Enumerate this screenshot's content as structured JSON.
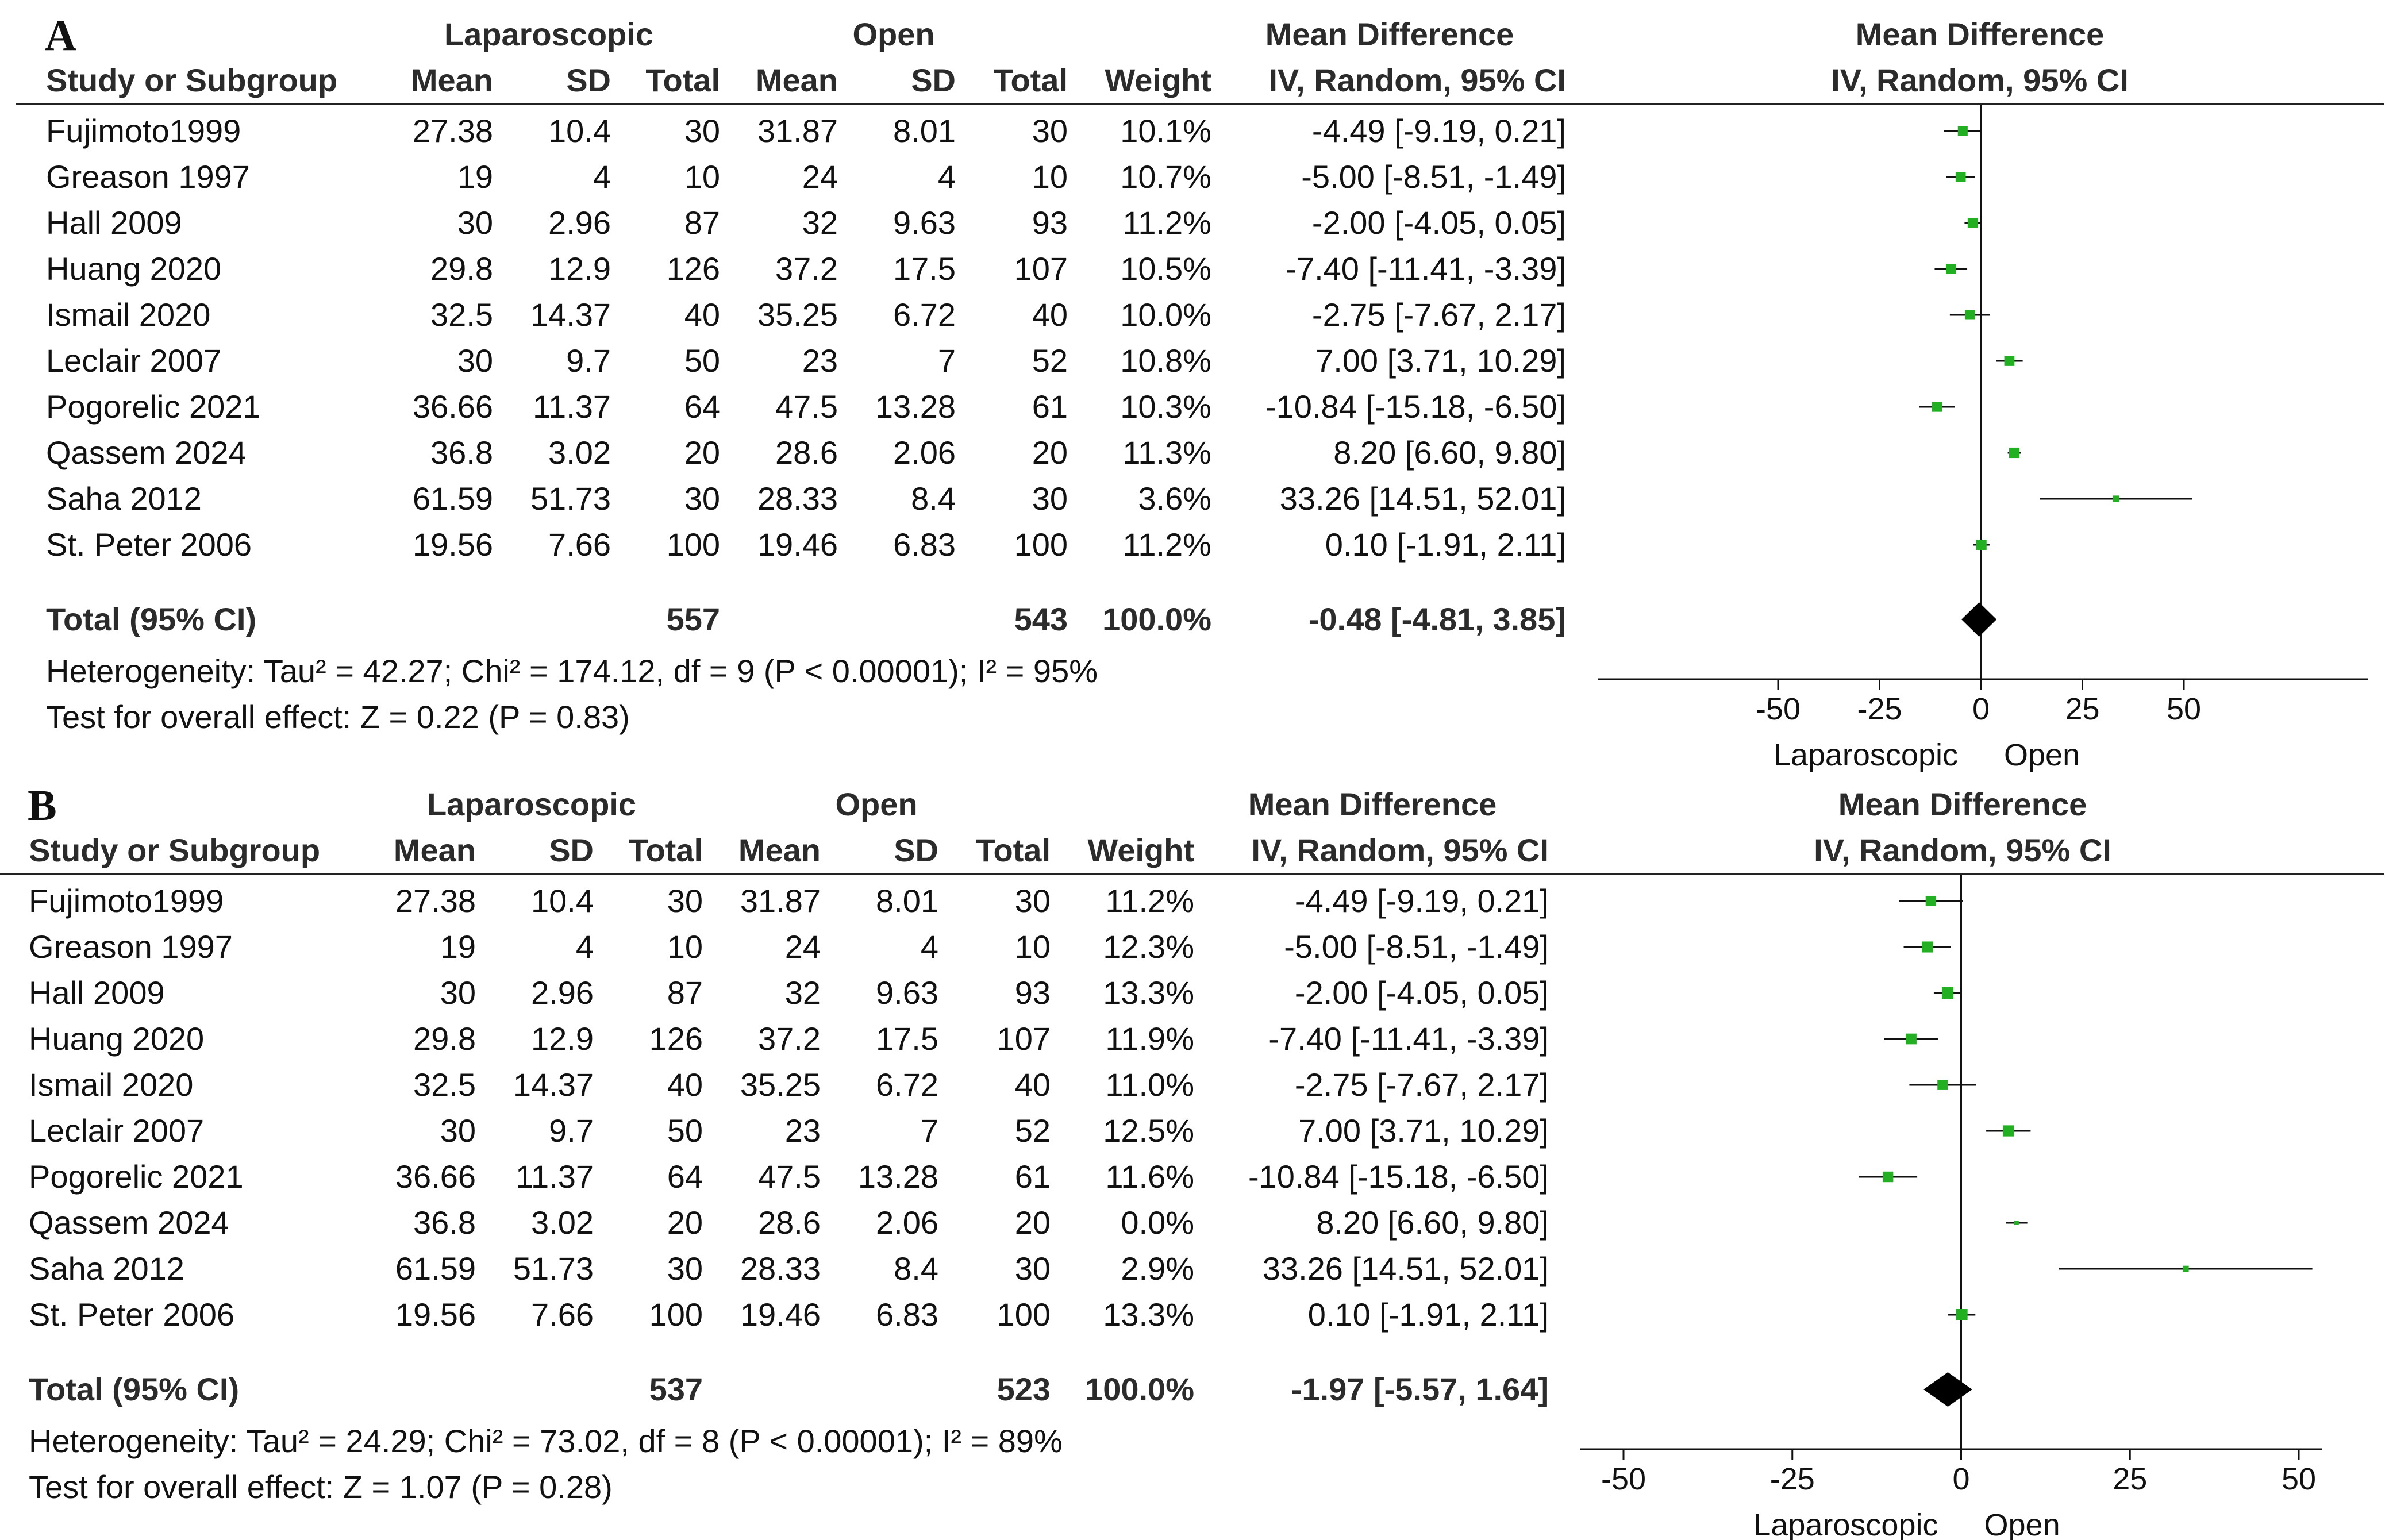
{
  "chart_data": [
    {
      "type": "forest",
      "panel_label": "A",
      "group_headers": {
        "experimental": "Laparoscopic",
        "control": "Open",
        "effect": "Mean Difference",
        "plot": "Mean Difference"
      },
      "columns": {
        "study": "Study or Subgroup",
        "mean": "Mean",
        "sd": "SD",
        "total": "Total",
        "weight": "Weight",
        "ci": "IV, Random, 95% CI",
        "plot_ci": "IV, Random, 95% CI"
      },
      "studies": [
        {
          "name": "Fujimoto1999",
          "exp_mean": "27.38",
          "exp_sd": "10.4",
          "exp_total": "30",
          "ctl_mean": "31.87",
          "ctl_sd": "8.01",
          "ctl_total": "30",
          "weight": "10.1%",
          "ci_text": "-4.49 [-9.19, 0.21]",
          "md": -4.49,
          "lo": -9.19,
          "hi": 0.21,
          "w": 10.1
        },
        {
          "name": "Greason 1997",
          "exp_mean": "19",
          "exp_sd": "4",
          "exp_total": "10",
          "ctl_mean": "24",
          "ctl_sd": "4",
          "ctl_total": "10",
          "weight": "10.7%",
          "ci_text": "-5.00 [-8.51, -1.49]",
          "md": -5.0,
          "lo": -8.51,
          "hi": -1.49,
          "w": 10.7
        },
        {
          "name": "Hall 2009",
          "exp_mean": "30",
          "exp_sd": "2.96",
          "exp_total": "87",
          "ctl_mean": "32",
          "ctl_sd": "9.63",
          "ctl_total": "93",
          "weight": "11.2%",
          "ci_text": "-2.00 [-4.05, 0.05]",
          "md": -2.0,
          "lo": -4.05,
          "hi": 0.05,
          "w": 11.2
        },
        {
          "name": "Huang 2020",
          "exp_mean": "29.8",
          "exp_sd": "12.9",
          "exp_total": "126",
          "ctl_mean": "37.2",
          "ctl_sd": "17.5",
          "ctl_total": "107",
          "weight": "10.5%",
          "ci_text": "-7.40 [-11.41, -3.39]",
          "md": -7.4,
          "lo": -11.41,
          "hi": -3.39,
          "w": 10.5
        },
        {
          "name": "Ismail 2020",
          "exp_mean": "32.5",
          "exp_sd": "14.37",
          "exp_total": "40",
          "ctl_mean": "35.25",
          "ctl_sd": "6.72",
          "ctl_total": "40",
          "weight": "10.0%",
          "ci_text": "-2.75 [-7.67, 2.17]",
          "md": -2.75,
          "lo": -7.67,
          "hi": 2.17,
          "w": 10.0
        },
        {
          "name": "Leclair 2007",
          "exp_mean": "30",
          "exp_sd": "9.7",
          "exp_total": "50",
          "ctl_mean": "23",
          "ctl_sd": "7",
          "ctl_total": "52",
          "weight": "10.8%",
          "ci_text": "7.00 [3.71, 10.29]",
          "md": 7.0,
          "lo": 3.71,
          "hi": 10.29,
          "w": 10.8
        },
        {
          "name": "Pogorelic 2021",
          "exp_mean": "36.66",
          "exp_sd": "11.37",
          "exp_total": "64",
          "ctl_mean": "47.5",
          "ctl_sd": "13.28",
          "ctl_total": "61",
          "weight": "10.3%",
          "ci_text": "-10.84 [-15.18, -6.50]",
          "md": -10.84,
          "lo": -15.18,
          "hi": -6.5,
          "w": 10.3
        },
        {
          "name": "Qassem 2024",
          "exp_mean": "36.8",
          "exp_sd": "3.02",
          "exp_total": "20",
          "ctl_mean": "28.6",
          "ctl_sd": "2.06",
          "ctl_total": "20",
          "weight": "11.3%",
          "ci_text": "8.20 [6.60, 9.80]",
          "md": 8.2,
          "lo": 6.6,
          "hi": 9.8,
          "w": 11.3
        },
        {
          "name": "Saha 2012",
          "exp_mean": "61.59",
          "exp_sd": "51.73",
          "exp_total": "30",
          "ctl_mean": "28.33",
          "ctl_sd": "8.4",
          "ctl_total": "30",
          "weight": "3.6%",
          "ci_text": "33.26 [14.51, 52.01]",
          "md": 33.26,
          "lo": 14.51,
          "hi": 52.01,
          "w": 3.6
        },
        {
          "name": "St. Peter 2006",
          "exp_mean": "19.56",
          "exp_sd": "7.66",
          "exp_total": "100",
          "ctl_mean": "19.46",
          "ctl_sd": "6.83",
          "ctl_total": "100",
          "weight": "11.2%",
          "ci_text": "0.10 [-1.91, 2.11]",
          "md": 0.1,
          "lo": -1.91,
          "hi": 2.11,
          "w": 11.2
        }
      ],
      "total": {
        "label": "Total (95% CI)",
        "exp_total": "557",
        "ctl_total": "543",
        "weight": "100.0%",
        "ci_text": "-0.48 [-4.81, 3.85]",
        "md": -0.48,
        "lo": -4.81,
        "hi": 3.85
      },
      "heterogeneity": "Heterogeneity: Tau² = 42.27; Chi² = 174.12, df = 9 (P < 0.00001); I² = 95%",
      "overall_effect": "Test for overall effect: Z = 0.22 (P = 0.83)",
      "xlim": [
        -50,
        50
      ],
      "xticks": [
        -50,
        -25,
        0,
        25,
        50
      ],
      "favours_left": "Laparoscopic",
      "favours_right": "Open",
      "marker_color": "#22b022"
    },
    {
      "type": "forest",
      "panel_label": "B",
      "group_headers": {
        "experimental": "Laparoscopic",
        "control": "Open",
        "effect": "Mean Difference",
        "plot": "Mean Difference"
      },
      "columns": {
        "study": "Study or Subgroup",
        "mean": "Mean",
        "sd": "SD",
        "total": "Total",
        "weight": "Weight",
        "ci": "IV, Random, 95% CI",
        "plot_ci": "IV, Random, 95% CI"
      },
      "studies": [
        {
          "name": "Fujimoto1999",
          "exp_mean": "27.38",
          "exp_sd": "10.4",
          "exp_total": "30",
          "ctl_mean": "31.87",
          "ctl_sd": "8.01",
          "ctl_total": "30",
          "weight": "11.2%",
          "ci_text": "-4.49 [-9.19, 0.21]",
          "md": -4.49,
          "lo": -9.19,
          "hi": 0.21,
          "w": 11.2
        },
        {
          "name": "Greason 1997",
          "exp_mean": "19",
          "exp_sd": "4",
          "exp_total": "10",
          "ctl_mean": "24",
          "ctl_sd": "4",
          "ctl_total": "10",
          "weight": "12.3%",
          "ci_text": "-5.00 [-8.51, -1.49]",
          "md": -5.0,
          "lo": -8.51,
          "hi": -1.49,
          "w": 12.3
        },
        {
          "name": "Hall 2009",
          "exp_mean": "30",
          "exp_sd": "2.96",
          "exp_total": "87",
          "ctl_mean": "32",
          "ctl_sd": "9.63",
          "ctl_total": "93",
          "weight": "13.3%",
          "ci_text": "-2.00 [-4.05, 0.05]",
          "md": -2.0,
          "lo": -4.05,
          "hi": 0.05,
          "w": 13.3
        },
        {
          "name": "Huang 2020",
          "exp_mean": "29.8",
          "exp_sd": "12.9",
          "exp_total": "126",
          "ctl_mean": "37.2",
          "ctl_sd": "17.5",
          "ctl_total": "107",
          "weight": "11.9%",
          "ci_text": "-7.40 [-11.41, -3.39]",
          "md": -7.4,
          "lo": -11.41,
          "hi": -3.39,
          "w": 11.9
        },
        {
          "name": "Ismail 2020",
          "exp_mean": "32.5",
          "exp_sd": "14.37",
          "exp_total": "40",
          "ctl_mean": "35.25",
          "ctl_sd": "6.72",
          "ctl_total": "40",
          "weight": "11.0%",
          "ci_text": "-2.75 [-7.67, 2.17]",
          "md": -2.75,
          "lo": -7.67,
          "hi": 2.17,
          "w": 11.0
        },
        {
          "name": "Leclair 2007",
          "exp_mean": "30",
          "exp_sd": "9.7",
          "exp_total": "50",
          "ctl_mean": "23",
          "ctl_sd": "7",
          "ctl_total": "52",
          "weight": "12.5%",
          "ci_text": "7.00 [3.71, 10.29]",
          "md": 7.0,
          "lo": 3.71,
          "hi": 10.29,
          "w": 12.5
        },
        {
          "name": "Pogorelic 2021",
          "exp_mean": "36.66",
          "exp_sd": "11.37",
          "exp_total": "64",
          "ctl_mean": "47.5",
          "ctl_sd": "13.28",
          "ctl_total": "61",
          "weight": "11.6%",
          "ci_text": "-10.84 [-15.18, -6.50]",
          "md": -10.84,
          "lo": -15.18,
          "hi": -6.5,
          "w": 11.6
        },
        {
          "name": "Qassem 2024",
          "exp_mean": "36.8",
          "exp_sd": "3.02",
          "exp_total": "20",
          "ctl_mean": "28.6",
          "ctl_sd": "2.06",
          "ctl_total": "20",
          "weight": "0.0%",
          "ci_text": "8.20 [6.60, 9.80]",
          "md": 8.2,
          "lo": 6.6,
          "hi": 9.8,
          "w": 0.0
        },
        {
          "name": "Saha 2012",
          "exp_mean": "61.59",
          "exp_sd": "51.73",
          "exp_total": "30",
          "ctl_mean": "28.33",
          "ctl_sd": "8.4",
          "ctl_total": "30",
          "weight": "2.9%",
          "ci_text": "33.26 [14.51, 52.01]",
          "md": 33.26,
          "lo": 14.51,
          "hi": 52.01,
          "w": 2.9
        },
        {
          "name": "St. Peter 2006",
          "exp_mean": "19.56",
          "exp_sd": "7.66",
          "exp_total": "100",
          "ctl_mean": "19.46",
          "ctl_sd": "6.83",
          "ctl_total": "100",
          "weight": "13.3%",
          "ci_text": "0.10 [-1.91, 2.11]",
          "md": 0.1,
          "lo": -1.91,
          "hi": 2.11,
          "w": 13.3
        }
      ],
      "total": {
        "label": "Total (95% CI)",
        "exp_total": "537",
        "ctl_total": "523",
        "weight": "100.0%",
        "ci_text": "-1.97 [-5.57, 1.64]",
        "md": -1.97,
        "lo": -5.57,
        "hi": 1.64
      },
      "heterogeneity": "Heterogeneity: Tau² = 24.29; Chi² = 73.02, df = 8 (P < 0.00001); I² = 89%",
      "overall_effect": "Test for overall effect: Z = 1.07 (P = 0.28)",
      "xlim": [
        -50,
        50
      ],
      "xticks": [
        -50,
        -25,
        0,
        25,
        50
      ],
      "favours_left": "Laparoscopic",
      "favours_right": "Open",
      "marker_color": "#22b022"
    }
  ]
}
